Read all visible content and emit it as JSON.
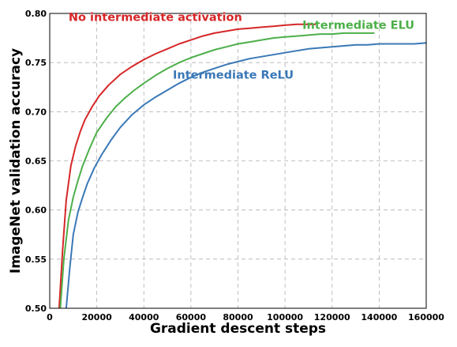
{
  "chart_data": {
    "type": "line",
    "xlabel": "Gradient descent steps",
    "ylabel": "ImageNet validation accuracy",
    "xlim": [
      0,
      160000
    ],
    "ylim": [
      0.5,
      0.8
    ],
    "xticks": [
      0,
      20000,
      40000,
      60000,
      80000,
      100000,
      120000,
      140000,
      160000
    ],
    "yticks": [
      0.5,
      0.55,
      0.6,
      0.65,
      0.7,
      0.75,
      0.8
    ],
    "grid": true,
    "series": [
      {
        "name": "No intermediate activation",
        "color": "#d62728",
        "x": [
          4000,
          5500,
          7000,
          9000,
          11000,
          13000,
          15000,
          18000,
          21000,
          25000,
          30000,
          35000,
          40000,
          45000,
          50000,
          55000,
          60000,
          65000,
          70000,
          75000,
          80000,
          85000,
          90000,
          95000,
          100000,
          105000,
          110000,
          113000
        ],
        "y": [
          0.5,
          0.56,
          0.61,
          0.645,
          0.665,
          0.68,
          0.692,
          0.705,
          0.716,
          0.727,
          0.738,
          0.746,
          0.753,
          0.759,
          0.764,
          0.769,
          0.773,
          0.777,
          0.78,
          0.782,
          0.784,
          0.785,
          0.786,
          0.787,
          0.788,
          0.789,
          0.789,
          0.789
        ]
      },
      {
        "name": "Intermediate ELU",
        "color": "#4daf4a",
        "x": [
          4500,
          6000,
          8000,
          10000,
          12000,
          14000,
          17000,
          20000,
          24000,
          28000,
          32000,
          36000,
          40000,
          45000,
          50000,
          55000,
          60000,
          65000,
          70000,
          75000,
          80000,
          85000,
          90000,
          95000,
          100000,
          105000,
          110000,
          115000,
          120000,
          125000,
          130000,
          135000,
          138000
        ],
        "y": [
          0.5,
          0.55,
          0.59,
          0.613,
          0.63,
          0.645,
          0.663,
          0.679,
          0.693,
          0.705,
          0.714,
          0.722,
          0.729,
          0.737,
          0.744,
          0.75,
          0.755,
          0.759,
          0.763,
          0.766,
          0.769,
          0.771,
          0.773,
          0.775,
          0.776,
          0.777,
          0.778,
          0.779,
          0.779,
          0.78,
          0.78,
          0.78,
          0.78
        ]
      },
      {
        "name": "Intermediate ReLU",
        "color": "#3a78b6",
        "x": [
          7000,
          8500,
          10000,
          12000,
          14000,
          16000,
          19000,
          22000,
          26000,
          30000,
          35000,
          40000,
          45000,
          50000,
          55000,
          60000,
          65000,
          70000,
          75000,
          80000,
          85000,
          90000,
          95000,
          100000,
          105000,
          110000,
          115000,
          120000,
          125000,
          130000,
          135000,
          140000,
          145000,
          150000,
          155000,
          160000
        ],
        "y": [
          0.5,
          0.54,
          0.575,
          0.598,
          0.613,
          0.627,
          0.643,
          0.656,
          0.671,
          0.684,
          0.697,
          0.707,
          0.715,
          0.722,
          0.729,
          0.735,
          0.74,
          0.744,
          0.748,
          0.751,
          0.754,
          0.756,
          0.758,
          0.76,
          0.762,
          0.764,
          0.765,
          0.766,
          0.767,
          0.768,
          0.768,
          0.769,
          0.769,
          0.769,
          0.769,
          0.77
        ]
      }
    ]
  }
}
